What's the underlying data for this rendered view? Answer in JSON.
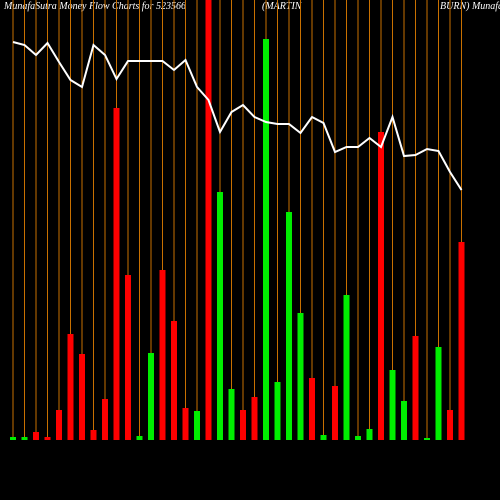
{
  "chart_data": {
    "type": "bar",
    "title": "MunafaSutra  Money Flow  Charts for 523566",
    "subtitle": "(MARTIN",
    "subtitle2": "BURN)  MunafaSutra.com",
    "categories": [
      null,
      null,
      null,
      null,
      null,
      null,
      null,
      null,
      null,
      null,
      null,
      null,
      null,
      null,
      null,
      null,
      null,
      null,
      null,
      null,
      null,
      null,
      null,
      null,
      null,
      null,
      null,
      null,
      null,
      null,
      null,
      null,
      null,
      null,
      null,
      null,
      null,
      null,
      null,
      null
    ],
    "ylim": [
      0,
      440
    ],
    "grid_color": "#c87000",
    "line_color": "#ffffff",
    "bar_colors": [
      "#00ee00",
      "#00ee00",
      "#ff0000",
      "#ff0000",
      "#ff0000",
      "#ff0000",
      "#ff0000",
      "#ff0000",
      "#ff0000",
      "#ff0000",
      "#ff0000",
      "#00ee00",
      "#00ee00",
      "#ff0000",
      "#ff0000",
      "#ff0000",
      "#00ee00",
      "#ff0000",
      "#00ee00",
      "#00ee00",
      "#ff0000",
      "#ff0000",
      "#00ee00",
      "#00ee00",
      "#00ee00",
      "#00ee00",
      "#ff0000",
      "#00ee00",
      "#ff0000",
      "#00ee00",
      "#00ee00",
      "#00ee00",
      "#ff0000",
      "#00ee00",
      "#00ee00",
      "#ff0000",
      "#00ee00",
      "#00ee00",
      "#ff0000",
      "#ff0000"
    ],
    "values": [
      3,
      3,
      8,
      3,
      30,
      106,
      86,
      10,
      41,
      332,
      165,
      4,
      87,
      170,
      119,
      32,
      29,
      440,
      248,
      51,
      30,
      43,
      401,
      58,
      228,
      127,
      62,
      5,
      54,
      145,
      4,
      11,
      308,
      70,
      39,
      104,
      2,
      93,
      30,
      198
    ],
    "line_values": [
      398,
      395,
      385,
      397,
      378,
      360,
      353,
      395,
      385,
      361,
      379,
      379,
      379,
      379,
      370,
      380,
      353,
      340,
      308,
      328,
      335,
      323,
      318,
      316,
      316,
      307,
      323,
      317,
      288,
      293,
      293,
      302,
      293,
      323,
      284,
      285,
      291,
      289,
      268,
      250
    ]
  }
}
